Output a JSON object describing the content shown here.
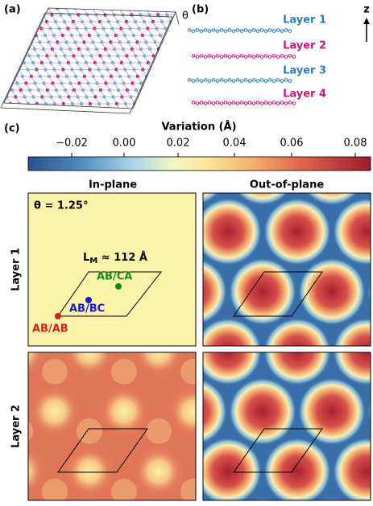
{
  "figure": {
    "panels": {
      "a": "(a)",
      "b": "(b)",
      "c": "(c)"
    },
    "theta_label": "θ",
    "layers": [
      "Layer 1",
      "Layer 2",
      "Layer 3",
      "Layer 4"
    ],
    "z_label": "z",
    "colorbar": {
      "title": "Variation (Å)",
      "ticks": [
        "−0.02",
        "0.00",
        "0.02",
        "0.04",
        "0.06",
        "0.08"
      ]
    },
    "columns": [
      "In-plane",
      "Out-of-plane"
    ],
    "rows": [
      "Layer 1",
      "Layer 2"
    ],
    "annotations": {
      "theta": "θ = 1.25°",
      "lm_main": "L",
      "lm_sub": "M",
      "lm_rest": " ≈ 112 Å",
      "ab_ca": "AB/CA",
      "ab_bc": "AB/BC",
      "ab_ab": "AB/AB"
    }
  }
}
